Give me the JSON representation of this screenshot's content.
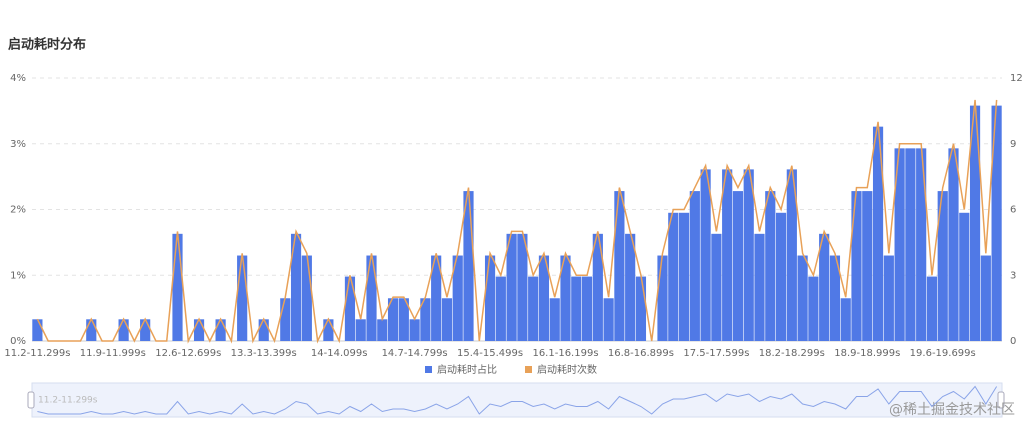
{
  "chart_data": {
    "type": "bar-line",
    "title": "启动耗时分布",
    "categories": [
      "11.2-11.299s",
      null,
      null,
      null,
      null,
      null,
      null,
      "11.9-11.999s",
      null,
      null,
      null,
      null,
      null,
      null,
      "12.6-12.699s",
      null,
      null,
      null,
      null,
      null,
      null,
      "13.3-13.399s",
      null,
      null,
      null,
      null,
      null,
      null,
      "14-14.099s",
      null,
      null,
      null,
      null,
      null,
      null,
      "14.7-14.799s",
      null,
      null,
      null,
      null,
      null,
      null,
      "15.4-15.499s",
      null,
      null,
      null,
      null,
      null,
      null,
      "16.1-16.199s",
      null,
      null,
      null,
      null,
      null,
      null,
      "16.8-16.899s",
      null,
      null,
      null,
      null,
      null,
      null,
      "17.5-17.599s",
      null,
      null,
      null,
      null,
      null,
      null,
      "18.2-18.299s",
      null,
      null,
      null,
      null,
      null,
      null,
      "18.9-18.999s",
      null,
      null,
      null,
      null,
      null,
      null,
      "19.6-19.699s",
      null,
      null,
      null,
      null,
      null
    ],
    "series": [
      {
        "name": "启动耗时占比",
        "color": "#5079e6",
        "kind": "bar",
        "values": [
          0.33,
          0,
          0,
          0,
          0,
          0.33,
          0,
          0,
          0.33,
          0,
          0.33,
          0,
          0,
          1.63,
          0,
          0.33,
          0,
          0.33,
          0,
          1.3,
          0,
          0.33,
          0,
          0.65,
          1.63,
          1.3,
          0,
          0.33,
          0,
          0.98,
          0.33,
          1.3,
          0.33,
          0.65,
          0.65,
          0.33,
          0.65,
          1.3,
          0.65,
          1.3,
          2.28,
          0,
          1.3,
          0.98,
          1.63,
          1.63,
          0.98,
          1.3,
          0.65,
          1.3,
          0.98,
          0.98,
          1.63,
          0.65,
          2.28,
          1.63,
          0.98,
          0,
          1.3,
          1.95,
          1.95,
          2.28,
          2.61,
          1.63,
          2.61,
          2.28,
          2.61,
          1.63,
          2.28,
          1.95,
          2.61,
          1.3,
          0.98,
          1.63,
          1.3,
          0.65,
          2.28,
          2.28,
          3.26,
          1.3,
          2.93,
          2.93,
          2.93,
          0.98,
          2.28,
          2.93,
          1.95,
          3.58,
          1.3,
          3.58
        ]
      },
      {
        "name": "启动耗时次数",
        "color": "#e8a158",
        "kind": "line",
        "axis": "y2",
        "values": [
          1,
          0,
          0,
          0,
          0,
          1,
          0,
          0,
          1,
          0,
          1,
          0,
          0,
          5,
          0,
          1,
          0,
          1,
          0,
          4,
          0,
          1,
          0,
          2,
          5,
          4,
          0,
          1,
          0,
          3,
          1,
          4,
          1,
          2,
          2,
          1,
          2,
          4,
          2,
          4,
          7,
          0,
          4,
          3,
          5,
          5,
          3,
          4,
          2,
          4,
          3,
          3,
          5,
          2,
          7,
          5,
          3,
          0,
          4,
          6,
          6,
          7,
          8,
          5,
          8,
          7,
          8,
          5,
          7,
          6,
          8,
          4,
          3,
          5,
          4,
          2,
          7,
          7,
          10,
          4,
          9,
          9,
          9,
          3,
          7,
          9,
          6,
          11,
          4,
          11
        ]
      }
    ],
    "ylim": [
      0,
      4
    ],
    "yticks": [
      {
        "value": 0,
        "label": "0%"
      },
      {
        "value": 1,
        "label": "1%"
      },
      {
        "value": 2,
        "label": "2%"
      },
      {
        "value": 3,
        "label": "3%"
      },
      {
        "value": 4,
        "label": "4%"
      }
    ],
    "y2lim": [
      0,
      12
    ],
    "y2ticks": [
      0,
      3,
      6,
      9,
      12
    ],
    "grid": true,
    "legend": "bottom",
    "watermark": "@稀土掘金技术社区"
  }
}
